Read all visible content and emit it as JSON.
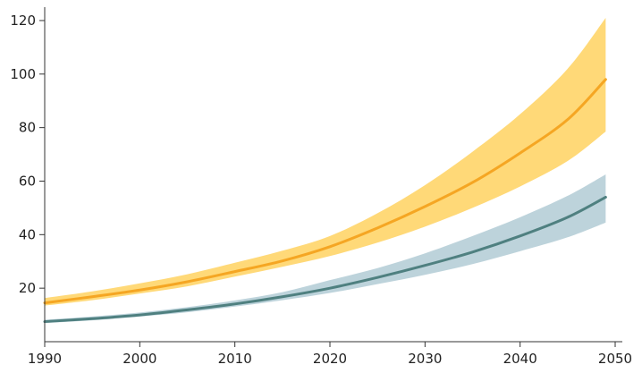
{
  "chart_data": {
    "type": "area",
    "title": "",
    "xlabel": "",
    "ylabel": "",
    "xlim": [
      1990,
      2050
    ],
    "ylim": [
      0,
      125
    ],
    "x_ticks": [
      1990,
      2000,
      2010,
      2020,
      2030,
      2040,
      2050
    ],
    "x_tick_labels": [
      "1990",
      "2000",
      "2010",
      "2020",
      "2030",
      "2040",
      "2050"
    ],
    "y_ticks": [
      20,
      40,
      60,
      80,
      100,
      120
    ],
    "y_tick_labels": [
      "20",
      "40",
      "60",
      "80",
      "100",
      "120"
    ],
    "grid": false,
    "legend": "none",
    "x": [
      1990,
      1995,
      2000,
      2005,
      2010,
      2015,
      2020,
      2025,
      2030,
      2035,
      2040,
      2045,
      2049
    ],
    "series": [
      {
        "color": "#F5A623",
        "band_color": "#FFD978",
        "values": [
          14.5,
          16.8,
          19.3,
          22.4,
          26.2,
          30.2,
          35.5,
          42.5,
          50.5,
          59.5,
          70.5,
          83.0,
          98.0
        ],
        "lower": [
          13.5,
          15.5,
          18.0,
          20.7,
          24.3,
          28.0,
          32.0,
          37.0,
          43.0,
          50.0,
          58.0,
          67.5,
          78.5
        ],
        "upper": [
          16.3,
          18.8,
          21.8,
          25.2,
          29.5,
          34.0,
          39.5,
          48.0,
          58.5,
          71.0,
          85.0,
          102.0,
          121.0
        ]
      },
      {
        "color": "#4F8080",
        "band_color": "#BDD3DB",
        "values": [
          7.5,
          8.6,
          10.0,
          11.9,
          14.1,
          16.8,
          20.0,
          24.0,
          28.5,
          33.5,
          39.5,
          46.5,
          54.0
        ],
        "lower": [
          7.0,
          8.0,
          9.4,
          11.0,
          13.1,
          15.5,
          18.2,
          21.5,
          25.0,
          29.0,
          33.8,
          39.0,
          44.5
        ],
        "upper": [
          8.2,
          9.4,
          10.9,
          12.9,
          15.4,
          18.5,
          23.0,
          27.5,
          33.0,
          39.5,
          46.5,
          54.5,
          62.5
        ]
      }
    ]
  }
}
